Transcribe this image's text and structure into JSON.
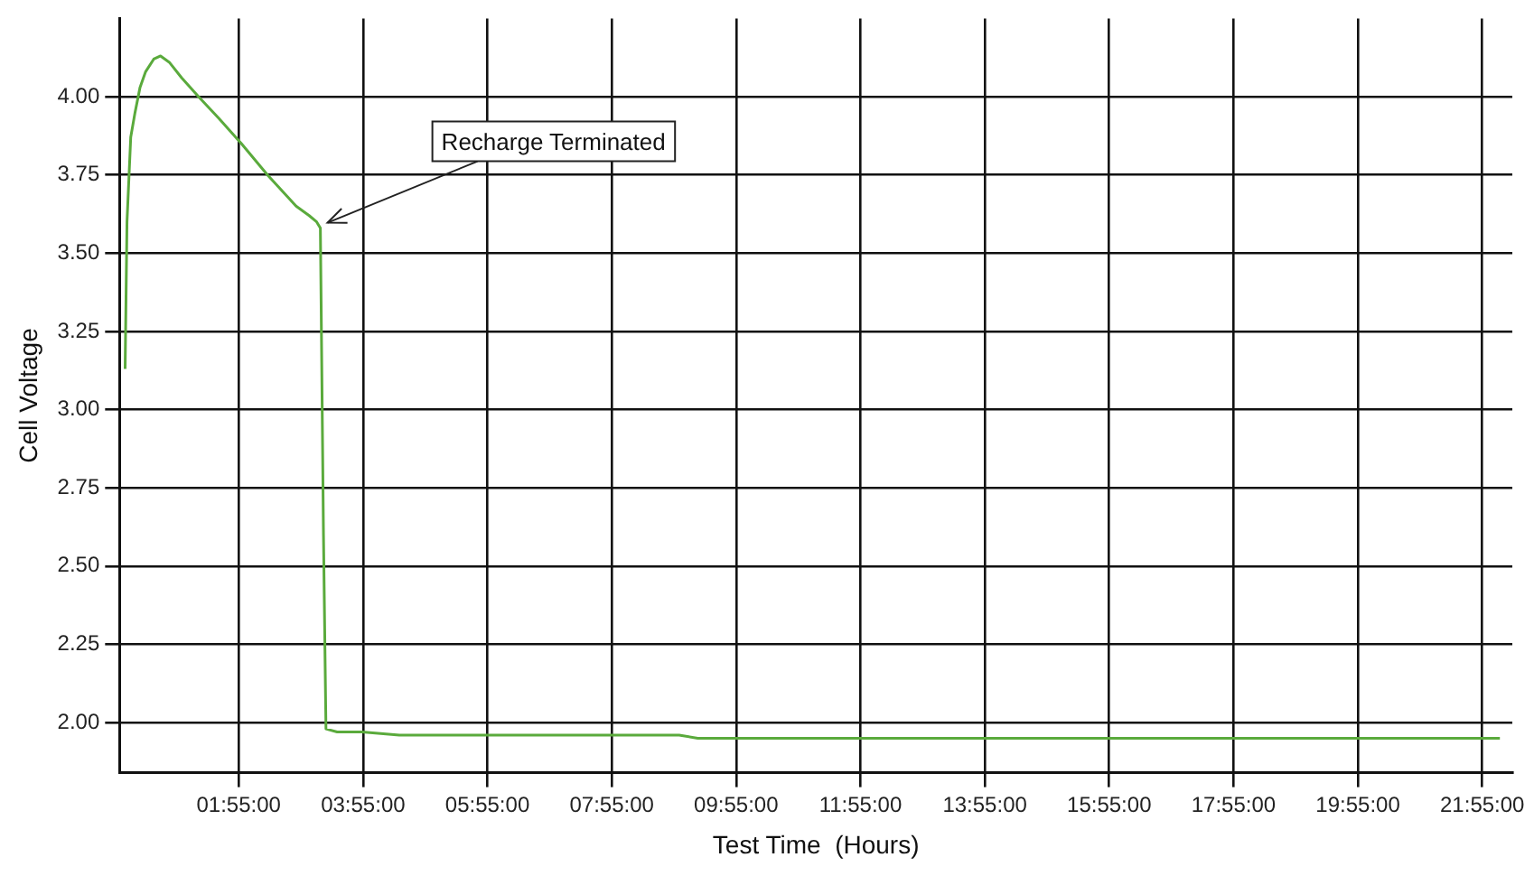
{
  "chart_data": {
    "type": "line",
    "xlabel": "Test Time  (Hours)",
    "ylabel": "Cell Voltage",
    "x": [
      0.09,
      0.12,
      0.18,
      0.25,
      0.33,
      0.42,
      0.55,
      0.66,
      0.8,
      1.0,
      1.27,
      1.6,
      1.96,
      2.38,
      2.84,
      3.05,
      3.17,
      3.23,
      3.28,
      3.32,
      3.5,
      3.9,
      4.5,
      6.0,
      8.0,
      9.0,
      9.3,
      10.0,
      12.0,
      14.0,
      16.0,
      18.0,
      20.0,
      22.2
    ],
    "series": [
      {
        "color": "#5aaa3c",
        "values": [
          3.13,
          3.6,
          3.87,
          3.95,
          4.03,
          4.08,
          4.12,
          4.13,
          4.11,
          4.06,
          4.0,
          3.93,
          3.85,
          3.75,
          3.65,
          3.62,
          3.6,
          3.58,
          2.6,
          1.98,
          1.97,
          1.97,
          1.96,
          1.96,
          1.96,
          1.96,
          1.95,
          1.95,
          1.95,
          1.95,
          1.95,
          1.95,
          1.95,
          1.95
        ]
      }
    ],
    "xlim": [
      0,
      22.4
    ],
    "ylim": [
      1.84,
      4.25
    ],
    "xticks": [
      {
        "value": 1.916667,
        "label": "01:55:00"
      },
      {
        "value": 3.916667,
        "label": "03:55:00"
      },
      {
        "value": 5.916667,
        "label": "05:55:00"
      },
      {
        "value": 7.916667,
        "label": "07:55:00"
      },
      {
        "value": 9.916667,
        "label": "09:55:00"
      },
      {
        "value": 11.916667,
        "label": "11:55:00"
      },
      {
        "value": 13.916667,
        "label": "13:55:00"
      },
      {
        "value": 15.916667,
        "label": "15:55:00"
      },
      {
        "value": 17.916667,
        "label": "17:55:00"
      },
      {
        "value": 19.916667,
        "label": "19:55:00"
      },
      {
        "value": 21.916667,
        "label": "21:55:00"
      }
    ],
    "yticks": [
      {
        "value": 2,
        "label": "2.00"
      },
      {
        "value": 2.25,
        "label": "2.25"
      },
      {
        "value": 2.5,
        "label": "2.50"
      },
      {
        "value": 2.75,
        "label": "2.75"
      },
      {
        "value": 3,
        "label": "3.00"
      },
      {
        "value": 3.25,
        "label": "3.25"
      },
      {
        "value": 3.5,
        "label": "3.50"
      },
      {
        "value": 3.75,
        "label": "3.75"
      },
      {
        "value": 4,
        "label": "4.00"
      }
    ],
    "grid": true,
    "legend": false,
    "marker": "none",
    "line_style": "solid",
    "annotations": [
      {
        "text": "Recharge Terminated",
        "x": 3.23,
        "y": 3.58
      }
    ]
  }
}
